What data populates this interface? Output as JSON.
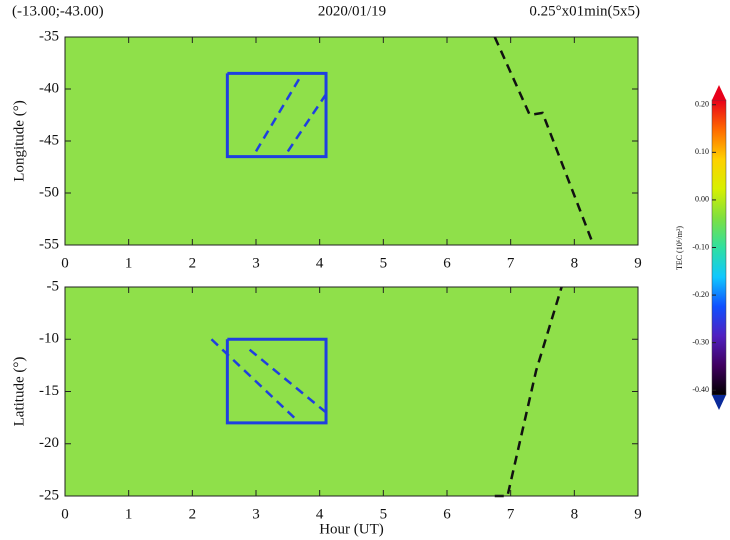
{
  "header": {
    "left": "(-13.00;-43.00)",
    "title": "2020/01/19",
    "right": "0.25°x01min(5x5)"
  },
  "chart_data": [
    {
      "type": "heatmap",
      "ylabel": "Longitude (°)",
      "xlim": [
        0,
        9
      ],
      "xticks": [
        0,
        1,
        2,
        3,
        4,
        5,
        6,
        7,
        8,
        9
      ],
      "ylim": [
        -55,
        -35
      ],
      "yticks": [
        -35,
        -40,
        -45,
        -50,
        -55
      ],
      "grid": false,
      "background": "#8fe04a",
      "overlays": [
        {
          "color": "#1f3fe0",
          "dash": false,
          "x": [
            2.55,
            4.1,
            4.1,
            2.55,
            2.55
          ],
          "y": [
            -38.5,
            -38.5,
            -46.5,
            -46.5,
            -38.5
          ]
        },
        {
          "color": "#1f3fe0",
          "dash": true,
          "x": [
            3.0,
            3.7
          ],
          "y": [
            -46,
            -38.8
          ]
        },
        {
          "color": "#1f3fe0",
          "dash": true,
          "x": [
            3.5,
            4.1
          ],
          "y": [
            -46,
            -40.5
          ]
        },
        {
          "color": "#111111",
          "dash": true,
          "x": [
            6.75,
            7.3,
            7.5,
            8.3
          ],
          "y": [
            -35,
            -42.5,
            -42.3,
            -55
          ]
        }
      ]
    },
    {
      "type": "heatmap",
      "xlabel": "Hour (UT)",
      "ylabel": "Latitude (°)",
      "xlim": [
        0,
        9
      ],
      "xticks": [
        0,
        1,
        2,
        3,
        4,
        5,
        6,
        7,
        8,
        9
      ],
      "ylim": [
        -25,
        -5
      ],
      "yticks": [
        -5,
        -10,
        -15,
        -20,
        -25
      ],
      "grid": false,
      "background": "#8fe04a",
      "overlays": [
        {
          "color": "#1f3fe0",
          "dash": false,
          "x": [
            2.55,
            4.1,
            4.1,
            2.55,
            2.55
          ],
          "y": [
            -10,
            -10,
            -18,
            -18,
            -10
          ]
        },
        {
          "color": "#1f3fe0",
          "dash": true,
          "x": [
            2.3,
            3.6
          ],
          "y": [
            -10,
            -17.5
          ]
        },
        {
          "color": "#1f3fe0",
          "dash": true,
          "x": [
            2.9,
            4.1
          ],
          "y": [
            -11,
            -17
          ]
        },
        {
          "color": "#111111",
          "dash": true,
          "x": [
            6.75,
            6.95,
            7.4,
            7.8
          ],
          "y": [
            -25,
            -25,
            -13,
            -5
          ]
        }
      ]
    }
  ],
  "colorbar": {
    "label": "TEC (10⁶/m²)",
    "clim": [
      -0.41,
      0.21
    ],
    "ticks": [
      {
        "value": 0.2,
        "label": "0.20"
      },
      {
        "value": 0.1,
        "label": "0.10"
      },
      {
        "value": 0.0,
        "label": "0.00"
      },
      {
        "value": -0.1,
        "label": "-0.10"
      },
      {
        "value": -0.2,
        "label": "-0.20"
      },
      {
        "value": -0.3,
        "label": "-0.30"
      },
      {
        "value": -0.4,
        "label": "-0.40"
      }
    ],
    "colormap": [
      "#e8001a",
      "#ff6a00",
      "#ffd000",
      "#d8f000",
      "#7ee040",
      "#30e0a0",
      "#10c8ff",
      "#1050ff",
      "#5020c0",
      "#400060",
      "#000000"
    ]
  }
}
